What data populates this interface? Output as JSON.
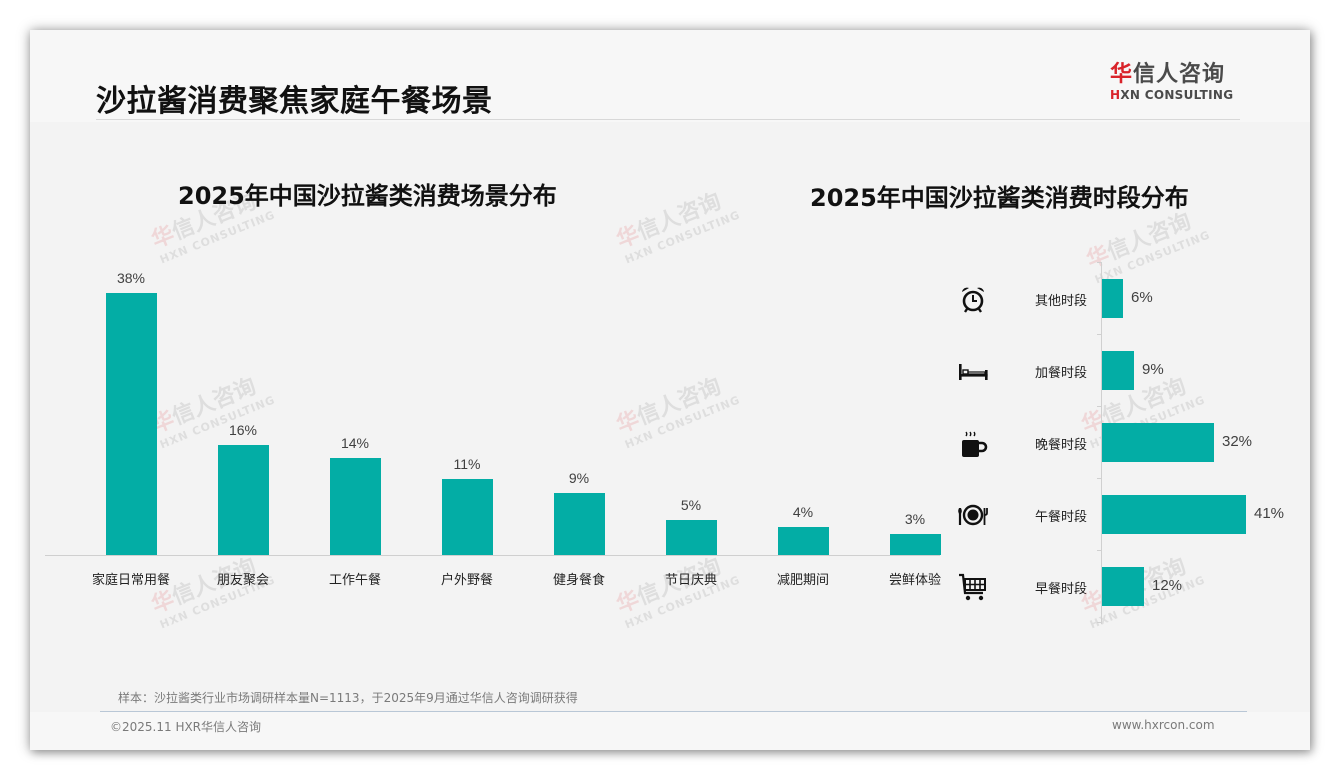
{
  "page": {
    "title": "沙拉酱消费聚焦家庭午餐场景"
  },
  "logo": {
    "cn_red": "华",
    "cn_rest": "信人咨询",
    "en_red": "H",
    "en_rest": "XN CONSULTING"
  },
  "watermark": {
    "cn_red": "华",
    "cn_rest": "信人咨询",
    "en": "HXN CONSULTING"
  },
  "colors": {
    "bar": "#03ada5",
    "brand_red": "#d9232a",
    "text": "#222222"
  },
  "chart_data": [
    {
      "type": "bar",
      "title": "2025年中国沙拉酱类消费场景分布",
      "categories": [
        "家庭日常用餐",
        "朋友聚会",
        "工作午餐",
        "户外野餐",
        "健身餐食",
        "节日庆典",
        "减肥期间",
        "尝鲜体验"
      ],
      "values": [
        38,
        16,
        14,
        11,
        9,
        5,
        4,
        3
      ],
      "labels": [
        "38%",
        "16%",
        "14%",
        "11%",
        "9%",
        "5%",
        "4%",
        "3%"
      ],
      "unit": "%",
      "xlabel": "",
      "ylabel": "",
      "ylim": [
        0,
        40
      ],
      "grid": false,
      "legend": null
    },
    {
      "type": "bar",
      "orientation": "horizontal",
      "title": "2025年中国沙拉酱类消费时段分布",
      "categories": [
        "其他时段",
        "加餐时段",
        "晚餐时段",
        "午餐时段",
        "早餐时段"
      ],
      "values": [
        6,
        9,
        32,
        41,
        12
      ],
      "labels": [
        "6%",
        "9%",
        "32%",
        "41%",
        "12%"
      ],
      "icons": [
        "alarm-clock-icon",
        "bed-icon",
        "hot-cup-icon",
        "plate-cutlery-icon",
        "shopping-cart-icon"
      ],
      "unit": "%",
      "xlim": [
        0,
        45
      ],
      "grid": false,
      "legend": null
    }
  ],
  "footer": {
    "note": "样本：沙拉酱类行业市场调研样本量N=1113，于2025年9月通过华信人咨询调研获得",
    "copyright": "©2025.11 HXR华信人咨询",
    "website": "www.hxrcon.com"
  }
}
